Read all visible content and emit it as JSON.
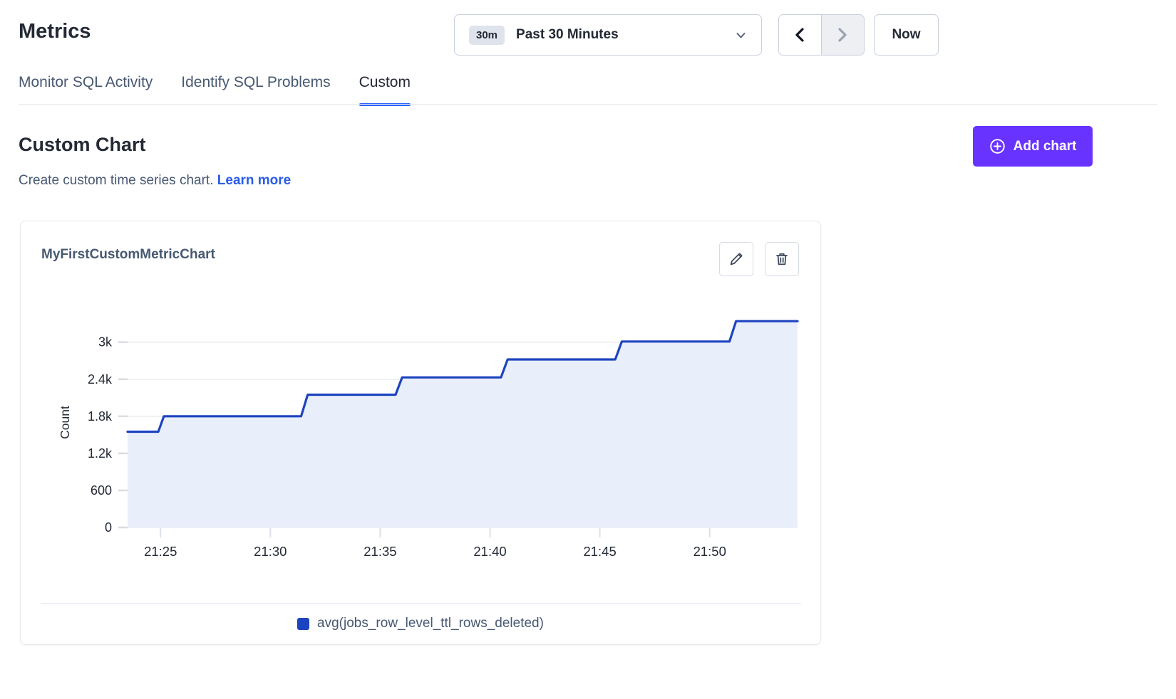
{
  "page": {
    "title": "Metrics"
  },
  "time_controls": {
    "range_badge": "30m",
    "range_label": "Past 30 Minutes",
    "now_label": "Now",
    "icons": {
      "dropdown": "chevron-down",
      "prev": "chevron-left",
      "next": "chevron-right"
    },
    "next_disabled": true
  },
  "tabs": [
    {
      "label": "Monitor SQL Activity",
      "active": false
    },
    {
      "label": "Identify SQL Problems",
      "active": false
    },
    {
      "label": "Custom",
      "active": true
    }
  ],
  "section": {
    "title": "Custom Chart",
    "subtitle": "Create custom time series chart.",
    "link_label": "Learn more",
    "add_chart_label": "Add chart",
    "add_chart_icon": "plus-circle"
  },
  "chart_card": {
    "title": "MyFirstCustomMetricChart",
    "actions": [
      {
        "name": "edit",
        "icon": "pencil"
      },
      {
        "name": "delete",
        "icon": "trash"
      }
    ]
  },
  "colors": {
    "brand_purple": "#6933FF",
    "link_blue": "#2A5CE8",
    "tab_underline": "#2962FF",
    "heading": "#242A35",
    "body_slate": "#475872"
  },
  "chart_data": {
    "type": "area",
    "subtype": "step-line",
    "title": "MyFirstCustomMetricChart",
    "xlabel": "",
    "ylabel": "Count",
    "x_unit": "minutes after 21:00",
    "x_domain": [
      23.5,
      54
    ],
    "y_domain": [
      0,
      3400
    ],
    "grid": true,
    "legend_position": "bottom-center",
    "x_ticks": [
      {
        "t": 25,
        "label": "21:25"
      },
      {
        "t": 30,
        "label": "21:30"
      },
      {
        "t": 35,
        "label": "21:35"
      },
      {
        "t": 40,
        "label": "21:40"
      },
      {
        "t": 45,
        "label": "21:45"
      },
      {
        "t": 50,
        "label": "21:50"
      }
    ],
    "y_ticks": [
      {
        "v": 0,
        "label": "0"
      },
      {
        "v": 600,
        "label": "600"
      },
      {
        "v": 1200,
        "label": "1.2k"
      },
      {
        "v": 1800,
        "label": "1.8k"
      },
      {
        "v": 2400,
        "label": "2.4k"
      },
      {
        "v": 3000,
        "label": "3k"
      }
    ],
    "series": [
      {
        "name": "avg(jobs_row_level_ttl_rows_deleted)",
        "color": "#1D44C0",
        "fill": "#E9EEFB",
        "points": [
          [
            23.5,
            1550
          ],
          [
            24.9,
            1550
          ],
          [
            25.15,
            1800
          ],
          [
            31.4,
            1800
          ],
          [
            31.7,
            2150
          ],
          [
            35.7,
            2150
          ],
          [
            36.0,
            2430
          ],
          [
            40.5,
            2430
          ],
          [
            40.8,
            2720
          ],
          [
            45.7,
            2720
          ],
          [
            46.0,
            3010
          ],
          [
            50.9,
            3010
          ],
          [
            51.2,
            3340
          ],
          [
            54.0,
            3340
          ]
        ]
      }
    ]
  }
}
